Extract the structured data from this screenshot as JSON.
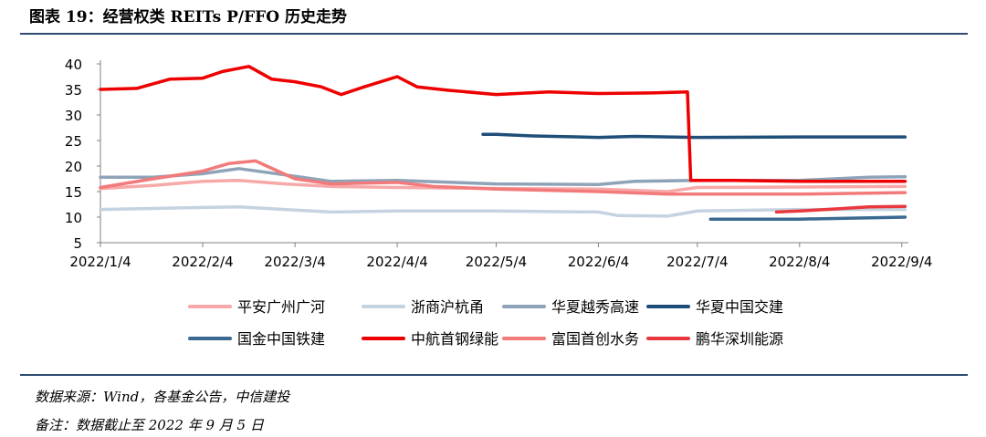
{
  "header": {
    "title": "图表 19：经营权类 REITs P/FFO 历史走势"
  },
  "footer": {
    "source": "数据来源：Wind，各基金公告，中信建投",
    "remark": "备注：数据截止至 2022 年 9 月 5 日"
  },
  "chart_data": {
    "type": "line",
    "title": "",
    "xlabel": "",
    "ylabel": "",
    "ylim": [
      5,
      40
    ],
    "yticks": [
      5,
      10,
      15,
      20,
      25,
      30,
      35,
      40
    ],
    "xlim": [
      "2022-01-04",
      "2022-09-06"
    ],
    "xticks": [
      "2022/1/4",
      "2022/2/4",
      "2022/3/4",
      "2022/4/4",
      "2022/5/4",
      "2022/6/4",
      "2022/7/4",
      "2022/8/4",
      "2022/9/4"
    ],
    "grid": false,
    "legend_position": "bottom",
    "series": [
      {
        "name": "平安广州广河",
        "color": "#f7a8a8",
        "x": [
          "2022-01-04",
          "2022-01-20",
          "2022-02-04",
          "2022-02-15",
          "2022-03-01",
          "2022-03-15",
          "2022-04-04",
          "2022-05-04",
          "2022-06-04",
          "2022-06-25",
          "2022-07-04",
          "2022-08-04",
          "2022-09-05"
        ],
        "values": [
          15.6,
          16.2,
          17.0,
          17.2,
          16.5,
          16.0,
          15.8,
          15.6,
          15.5,
          15.0,
          15.8,
          15.9,
          16.0
        ]
      },
      {
        "name": "浙商沪杭甬",
        "color": "#c5d3e0",
        "x": [
          "2022-01-04",
          "2022-01-20",
          "2022-02-04",
          "2022-02-15",
          "2022-03-04",
          "2022-03-15",
          "2022-04-04",
          "2022-05-04",
          "2022-06-04",
          "2022-06-10",
          "2022-06-25",
          "2022-07-04",
          "2022-08-04",
          "2022-09-05"
        ],
        "values": [
          11.5,
          11.7,
          11.9,
          12.0,
          11.4,
          11.0,
          11.2,
          11.2,
          11.0,
          10.3,
          10.2,
          11.2,
          11.5,
          11.5
        ]
      },
      {
        "name": "华夏越秀高速",
        "color": "#8ea3b8",
        "x": [
          "2022-01-04",
          "2022-01-20",
          "2022-02-04",
          "2022-02-15",
          "2022-03-04",
          "2022-03-15",
          "2022-04-04",
          "2022-05-04",
          "2022-06-04",
          "2022-06-15",
          "2022-07-04",
          "2022-08-04",
          "2022-08-25",
          "2022-09-05"
        ],
        "values": [
          17.8,
          17.8,
          18.5,
          19.5,
          18.0,
          17.0,
          17.2,
          16.5,
          16.4,
          17.0,
          17.2,
          17.2,
          17.8,
          17.9
        ]
      },
      {
        "name": "华夏中国交建",
        "color": "#1f4e79",
        "x": [
          "2022-04-30",
          "2022-05-04",
          "2022-05-15",
          "2022-06-04",
          "2022-06-15",
          "2022-07-04",
          "2022-08-04",
          "2022-09-05"
        ],
        "values": [
          26.2,
          26.2,
          25.9,
          25.6,
          25.8,
          25.6,
          25.7,
          25.7
        ]
      },
      {
        "name": "国金中国铁建",
        "color": "#3c6991",
        "x": [
          "2022-07-08",
          "2022-07-20",
          "2022-08-04",
          "2022-08-20",
          "2022-09-05"
        ],
        "values": [
          9.6,
          9.6,
          9.6,
          9.8,
          10.0
        ]
      },
      {
        "name": "中航首钢绿能",
        "color": "#ee0000",
        "x": [
          "2022-01-04",
          "2022-01-15",
          "2022-01-25",
          "2022-02-04",
          "2022-02-10",
          "2022-02-18",
          "2022-02-25",
          "2022-03-04",
          "2022-03-12",
          "2022-03-18",
          "2022-03-25",
          "2022-04-04",
          "2022-04-10",
          "2022-04-20",
          "2022-05-04",
          "2022-05-20",
          "2022-06-04",
          "2022-06-20",
          "2022-07-01",
          "2022-07-02",
          "2022-07-15",
          "2022-08-04",
          "2022-09-05"
        ],
        "values": [
          35.0,
          35.2,
          37.0,
          37.2,
          38.5,
          39.5,
          37.0,
          36.5,
          35.5,
          34.0,
          35.5,
          37.5,
          35.5,
          34.8,
          34.0,
          34.5,
          34.2,
          34.3,
          34.5,
          17.2,
          17.2,
          17.0,
          17.0
        ]
      },
      {
        "name": "富国首创水务",
        "color": "#f37a7a",
        "x": [
          "2022-01-04",
          "2022-01-20",
          "2022-02-04",
          "2022-02-12",
          "2022-02-20",
          "2022-03-04",
          "2022-03-15",
          "2022-04-04",
          "2022-04-15",
          "2022-05-04",
          "2022-06-04",
          "2022-06-25",
          "2022-07-04",
          "2022-08-04",
          "2022-09-05"
        ],
        "values": [
          15.8,
          17.5,
          19.0,
          20.5,
          21.0,
          17.5,
          16.5,
          16.8,
          16.0,
          15.5,
          15.0,
          14.5,
          14.5,
          14.5,
          14.8
        ]
      },
      {
        "name": "鹏华深圳能源",
        "color": "#e8383d",
        "x": [
          "2022-07-28",
          "2022-08-04",
          "2022-08-15",
          "2022-08-25",
          "2022-09-05"
        ],
        "values": [
          11.0,
          11.2,
          11.6,
          12.0,
          12.1
        ]
      }
    ]
  }
}
